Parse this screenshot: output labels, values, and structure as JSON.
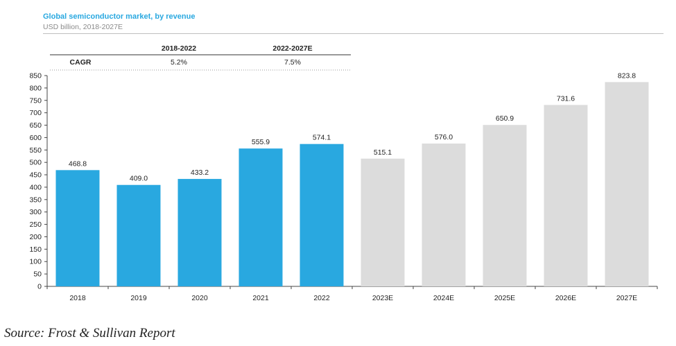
{
  "title": "Global semiconductor market, by revenue",
  "subtitle": "USD billion, 2018-2027E",
  "source": "Source: Frost & Sullivan Report",
  "cagr_table": {
    "row_label": "CAGR",
    "columns": [
      {
        "header": "2018-2022",
        "value": "5.2%"
      },
      {
        "header": "2022-2027E",
        "value": "7.5%"
      }
    ]
  },
  "colors": {
    "actual": "#29a8e0",
    "forecast": "#dcdcdc",
    "title": "#29a8e0"
  },
  "chart_data": {
    "type": "bar",
    "categories": [
      "2018",
      "2019",
      "2020",
      "2021",
      "2022",
      "2023E",
      "2024E",
      "2025E",
      "2026E",
      "2027E"
    ],
    "values": [
      468.8,
      409.0,
      433.2,
      555.9,
      574.1,
      515.1,
      576.0,
      650.9,
      731.6,
      823.8
    ],
    "value_labels": [
      "468.8",
      "409.0",
      "433.2",
      "555.9",
      "574.1",
      "515.1",
      "576.0",
      "650.9",
      "731.6",
      "823.8"
    ],
    "bar_kind": [
      "actual",
      "actual",
      "actual",
      "actual",
      "actual",
      "forecast",
      "forecast",
      "forecast",
      "forecast",
      "forecast"
    ],
    "yticks": [
      "0",
      "50",
      "100",
      "150",
      "200",
      "250",
      "300",
      "350",
      "400",
      "450",
      "500",
      "550",
      "600",
      "650",
      "700",
      "750",
      "800",
      "850"
    ],
    "ylim": [
      0,
      850
    ],
    "title": "Global semiconductor market, by revenue",
    "xlabel": "",
    "ylabel": "",
    "grid": false
  }
}
